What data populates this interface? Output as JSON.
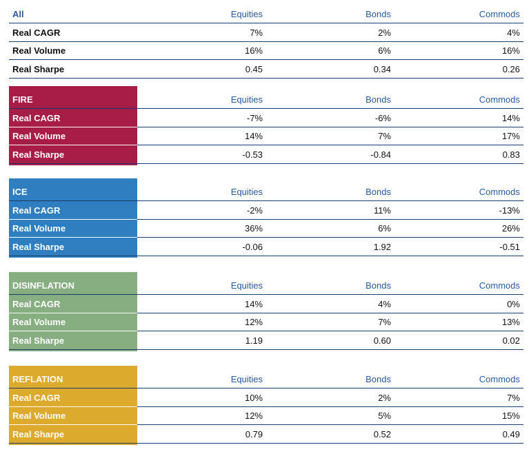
{
  "columns": [
    "Equities",
    "Bonds",
    "Commods"
  ],
  "sections": [
    {
      "name": "All",
      "color": "",
      "rows": [
        {
          "label": "Real CAGR",
          "values": [
            "7%",
            "2%",
            "4%"
          ]
        },
        {
          "label": "Real Volume",
          "values": [
            "16%",
            "6%",
            "16%"
          ]
        },
        {
          "label": "Real Sharpe",
          "values": [
            "0.45",
            "0.34",
            "0.26"
          ]
        }
      ]
    },
    {
      "name": "FIRE",
      "color": "#a81c48",
      "rows": [
        {
          "label": "Real CAGR",
          "values": [
            "-7%",
            "-6%",
            "14%"
          ]
        },
        {
          "label": "Real Volume",
          "values": [
            "14%",
            "7%",
            "17%"
          ]
        },
        {
          "label": "Real Sharpe",
          "values": [
            "-0.53",
            "-0.84",
            "0.83"
          ]
        }
      ]
    },
    {
      "name": "ICE",
      "color": "#2f7ec0",
      "rows": [
        {
          "label": "Real CAGR",
          "values": [
            "-2%",
            "11%",
            "-13%"
          ]
        },
        {
          "label": "Real Volume",
          "values": [
            "36%",
            "6%",
            "26%"
          ]
        },
        {
          "label": "Real Sharpe",
          "values": [
            "-0.06",
            "1.92",
            "-0.51"
          ]
        }
      ]
    },
    {
      "name": "DISINFLATION",
      "color": "#86ae80",
      "rows": [
        {
          "label": "Real CAGR",
          "values": [
            "14%",
            "4%",
            "0%"
          ]
        },
        {
          "label": "Real Volume",
          "values": [
            "12%",
            "7%",
            "13%"
          ]
        },
        {
          "label": "Real Sharpe",
          "values": [
            "1.19",
            "0.60",
            "0.02"
          ]
        }
      ]
    },
    {
      "name": "REFLATION",
      "color": "#dcaa2c",
      "rows": [
        {
          "label": "Real CAGR",
          "values": [
            "10%",
            "2%",
            "7%"
          ]
        },
        {
          "label": "Real Volume",
          "values": [
            "12%",
            "5%",
            "15%"
          ]
        },
        {
          "label": "Real Sharpe",
          "values": [
            "0.79",
            "0.52",
            "0.49"
          ]
        }
      ]
    }
  ]
}
